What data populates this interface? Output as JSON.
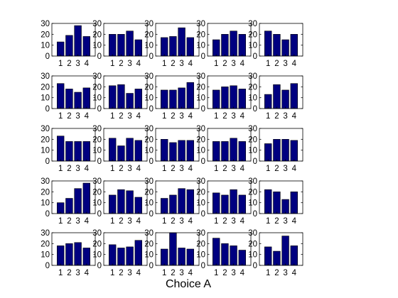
{
  "figure": {
    "caption": "Choice A"
  },
  "style": {
    "bar_color": "#000080",
    "axis_color": "#000000",
    "background": "#ffffff"
  },
  "chart_data": {
    "type": "bar",
    "layout": {
      "rows": 5,
      "cols": 5
    },
    "categories": [
      "1",
      "2",
      "3",
      "4"
    ],
    "ylim": [
      0,
      30
    ],
    "yticks": [
      0,
      10,
      20,
      30
    ],
    "grid": false,
    "xlabel": "Choice A",
    "panels": [
      {
        "values": [
          13,
          19,
          28,
          18
        ]
      },
      {
        "values": [
          20,
          20,
          23,
          15
        ]
      },
      {
        "values": [
          17,
          18,
          26,
          17
        ]
      },
      {
        "values": [
          15,
          20,
          23,
          20
        ]
      },
      {
        "values": [
          23,
          20,
          15,
          20
        ]
      },
      {
        "values": [
          23,
          18,
          15,
          19
        ]
      },
      {
        "values": [
          21,
          22,
          14,
          18
        ]
      },
      {
        "values": [
          17,
          17,
          19,
          24
        ]
      },
      {
        "values": [
          17,
          20,
          21,
          18
        ]
      },
      {
        "values": [
          13,
          22,
          17,
          23
        ]
      },
      {
        "values": [
          23,
          18,
          18,
          18
        ]
      },
      {
        "values": [
          21,
          14,
          21,
          19
        ]
      },
      {
        "values": [
          20,
          17,
          19,
          19
        ]
      },
      {
        "values": [
          18,
          18,
          21,
          18
        ]
      },
      {
        "values": [
          16,
          20,
          20,
          19
        ]
      },
      {
        "values": [
          10,
          14,
          23,
          28
        ]
      },
      {
        "values": [
          17,
          22,
          21,
          15
        ]
      },
      {
        "values": [
          14,
          17,
          23,
          22
        ]
      },
      {
        "values": [
          19,
          17,
          22,
          17
        ]
      },
      {
        "values": [
          22,
          20,
          13,
          20
        ]
      },
      {
        "values": [
          18,
          20,
          21,
          16
        ]
      },
      {
        "values": [
          19,
          16,
          17,
          23
        ]
      },
      {
        "values": [
          15,
          30,
          16,
          15
        ]
      },
      {
        "values": [
          25,
          20,
          18,
          14
        ]
      },
      {
        "values": [
          17,
          13,
          27,
          18
        ]
      }
    ]
  }
}
